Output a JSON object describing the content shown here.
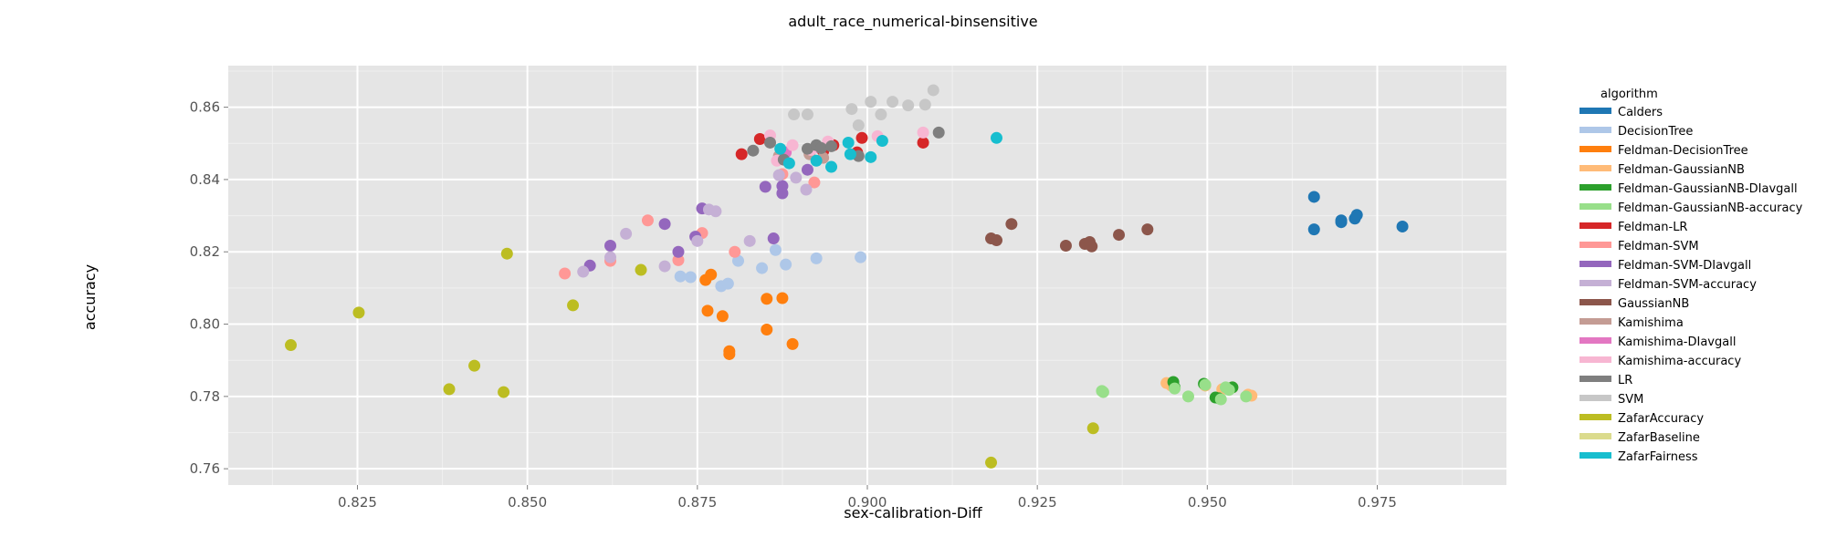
{
  "chart_data": {
    "type": "scatter",
    "title": "adult_race_numerical-binsensitive",
    "xlabel": "sex-calibration-Diff",
    "ylabel": "accuracy",
    "xlim": [
      0.806,
      0.994
    ],
    "ylim": [
      0.7555,
      0.8715
    ],
    "xticks": [
      0.825,
      0.85,
      0.875,
      0.9,
      0.925,
      0.95,
      0.975
    ],
    "xtick_labels": [
      "0.825",
      "0.850",
      "0.875",
      "0.900",
      "0.925",
      "0.950",
      "0.975"
    ],
    "yticks": [
      0.76,
      0.78,
      0.8,
      0.82,
      0.84,
      0.86
    ],
    "ytick_labels": [
      "0.76",
      "0.78",
      "0.80",
      "0.82",
      "0.84",
      "0.86"
    ],
    "grid": true,
    "legend_title": "algorithm",
    "legend_position": "right",
    "series": [
      {
        "name": "Calders",
        "color": "#1f77b4",
        "points": [
          [
            0.9657,
            0.8352
          ],
          [
            0.9657,
            0.8262
          ],
          [
            0.9697,
            0.8282
          ],
          [
            0.9697,
            0.8287
          ],
          [
            0.9717,
            0.8292
          ],
          [
            0.972,
            0.8302
          ],
          [
            0.9787,
            0.827
          ]
        ]
      },
      {
        "name": "DecisionTree",
        "color": "#aec7e8",
        "points": [
          [
            0.8725,
            0.8132
          ],
          [
            0.874,
            0.813
          ],
          [
            0.875,
            0.8242
          ],
          [
            0.8785,
            0.8105
          ],
          [
            0.8795,
            0.8112
          ],
          [
            0.881,
            0.8175
          ],
          [
            0.8845,
            0.8155
          ],
          [
            0.8865,
            0.8205
          ],
          [
            0.888,
            0.8165
          ],
          [
            0.8925,
            0.8182
          ],
          [
            0.899,
            0.8185
          ]
        ]
      },
      {
        "name": "Feldman-DecisionTree",
        "color": "#ff7f0e",
        "points": [
          [
            0.8762,
            0.8122
          ],
          [
            0.8765,
            0.8037
          ],
          [
            0.877,
            0.8137
          ],
          [
            0.8787,
            0.8022
          ],
          [
            0.8797,
            0.7925
          ],
          [
            0.8797,
            0.7917
          ],
          [
            0.8852,
            0.807
          ],
          [
            0.8852,
            0.7985
          ],
          [
            0.8875,
            0.8072
          ],
          [
            0.889,
            0.7945
          ]
        ]
      },
      {
        "name": "Feldman-GaussianNB",
        "color": "#ffbb78",
        "points": [
          [
            0.944,
            0.7837
          ],
          [
            0.9447,
            0.783
          ],
          [
            0.9497,
            0.783
          ],
          [
            0.9522,
            0.782
          ],
          [
            0.9537,
            0.7825
          ],
          [
            0.956,
            0.7805
          ],
          [
            0.9565,
            0.7802
          ]
        ]
      },
      {
        "name": "Feldman-GaussianNB-DIavgall",
        "color": "#2ca02c",
        "points": [
          [
            0.945,
            0.784
          ],
          [
            0.9452,
            0.7825
          ],
          [
            0.9495,
            0.7835
          ],
          [
            0.9512,
            0.7797
          ],
          [
            0.9517,
            0.7795
          ],
          [
            0.9537,
            0.7825
          ]
        ]
      },
      {
        "name": "Feldman-GaussianNB-accuracy",
        "color": "#98df8a",
        "points": [
          [
            0.9345,
            0.7815
          ],
          [
            0.9347,
            0.7812
          ],
          [
            0.9452,
            0.7822
          ],
          [
            0.9472,
            0.78
          ],
          [
            0.9497,
            0.7832
          ],
          [
            0.952,
            0.7792
          ],
          [
            0.9527,
            0.7825
          ],
          [
            0.9532,
            0.7818
          ],
          [
            0.9557,
            0.78
          ]
        ]
      },
      {
        "name": "Feldman-LR",
        "color": "#d62728",
        "points": [
          [
            0.8815,
            0.847
          ],
          [
            0.8842,
            0.8512
          ],
          [
            0.8935,
            0.8478
          ],
          [
            0.895,
            0.8495
          ],
          [
            0.8985,
            0.8475
          ],
          [
            0.8992,
            0.8515
          ],
          [
            0.9082,
            0.8502
          ]
        ]
      },
      {
        "name": "Feldman-SVM",
        "color": "#ff9896",
        "points": [
          [
            0.8555,
            0.814
          ],
          [
            0.8622,
            0.8175
          ],
          [
            0.8677,
            0.8287
          ],
          [
            0.8722,
            0.8177
          ],
          [
            0.8757,
            0.8252
          ],
          [
            0.8805,
            0.82
          ],
          [
            0.8875,
            0.8415
          ],
          [
            0.8922,
            0.8392
          ]
        ]
      },
      {
        "name": "Feldman-SVM-DIavgall",
        "color": "#9467bd",
        "points": [
          [
            0.8592,
            0.8162
          ],
          [
            0.8622,
            0.8217
          ],
          [
            0.8702,
            0.8277
          ],
          [
            0.8722,
            0.82
          ],
          [
            0.8747,
            0.8242
          ],
          [
            0.8757,
            0.832
          ],
          [
            0.885,
            0.838
          ],
          [
            0.8862,
            0.8237
          ],
          [
            0.8875,
            0.8362
          ],
          [
            0.8875,
            0.8382
          ],
          [
            0.8912,
            0.8427
          ]
        ]
      },
      {
        "name": "Feldman-SVM-accuracy",
        "color": "#c5b0d5",
        "points": [
          [
            0.8582,
            0.8145
          ],
          [
            0.8622,
            0.8185
          ],
          [
            0.8645,
            0.825
          ],
          [
            0.8702,
            0.816
          ],
          [
            0.875,
            0.823
          ],
          [
            0.8767,
            0.8317
          ],
          [
            0.8777,
            0.8312
          ],
          [
            0.8827,
            0.823
          ],
          [
            0.887,
            0.8412
          ],
          [
            0.8895,
            0.8405
          ],
          [
            0.891,
            0.8372
          ]
        ]
      },
      {
        "name": "GaussianNB",
        "color": "#8c564b",
        "points": [
          [
            0.9182,
            0.8237
          ],
          [
            0.919,
            0.8232
          ],
          [
            0.9212,
            0.8277
          ],
          [
            0.9292,
            0.8217
          ],
          [
            0.932,
            0.8222
          ],
          [
            0.9327,
            0.8227
          ],
          [
            0.933,
            0.8215
          ],
          [
            0.937,
            0.8247
          ],
          [
            0.9412,
            0.8262
          ]
        ]
      },
      {
        "name": "Kamishima",
        "color": "#c49c94",
        "points": [
          [
            0.887,
            0.8465
          ],
          [
            0.8915,
            0.847
          ],
          [
            0.8935,
            0.846
          ]
        ]
      },
      {
        "name": "Kamishima-DIavgall",
        "color": "#e377c2",
        "points": [
          [
            0.888,
            0.8475
          ],
          [
            0.8925,
            0.849
          ]
        ]
      },
      {
        "name": "Kamishima-accuracy",
        "color": "#f7b6d2",
        "points": [
          [
            0.8857,
            0.8522
          ],
          [
            0.8867,
            0.8452
          ],
          [
            0.889,
            0.8495
          ],
          [
            0.8917,
            0.8482
          ],
          [
            0.8942,
            0.8505
          ],
          [
            0.9015,
            0.852
          ],
          [
            0.9082,
            0.853
          ]
        ]
      },
      {
        "name": "LR",
        "color": "#7f7f7f",
        "points": [
          [
            0.8832,
            0.848
          ],
          [
            0.8857,
            0.8502
          ],
          [
            0.8877,
            0.8455
          ],
          [
            0.8912,
            0.8485
          ],
          [
            0.8925,
            0.8495
          ],
          [
            0.8932,
            0.8487
          ],
          [
            0.8947,
            0.8492
          ],
          [
            0.8987,
            0.8465
          ],
          [
            0.9105,
            0.853
          ]
        ]
      },
      {
        "name": "SVM",
        "color": "#c7c7c7",
        "points": [
          [
            0.8892,
            0.858
          ],
          [
            0.8912,
            0.858
          ],
          [
            0.8977,
            0.8595
          ],
          [
            0.8987,
            0.855
          ],
          [
            0.9005,
            0.8615
          ],
          [
            0.902,
            0.858
          ],
          [
            0.9037,
            0.8615
          ],
          [
            0.906,
            0.8605
          ],
          [
            0.9085,
            0.8607
          ],
          [
            0.9097,
            0.8647
          ]
        ]
      },
      {
        "name": "ZafarAccuracy",
        "color": "#bcbd22",
        "points": [
          [
            0.8152,
            0.7942
          ],
          [
            0.8252,
            0.8032
          ],
          [
            0.8385,
            0.782
          ],
          [
            0.8422,
            0.7885
          ],
          [
            0.8465,
            0.7812
          ],
          [
            0.847,
            0.8195
          ],
          [
            0.8567,
            0.8052
          ],
          [
            0.8667,
            0.815
          ],
          [
            0.9182,
            0.7617
          ],
          [
            0.9332,
            0.7712
          ]
        ]
      },
      {
        "name": "ZafarBaseline",
        "color": "#dbdb8d",
        "points": []
      },
      {
        "name": "ZafarFairness",
        "color": "#17becf",
        "points": [
          [
            0.8872,
            0.8485
          ],
          [
            0.8885,
            0.8445
          ],
          [
            0.8925,
            0.8452
          ],
          [
            0.8947,
            0.8435
          ],
          [
            0.8972,
            0.8502
          ],
          [
            0.8975,
            0.847
          ],
          [
            0.9005,
            0.8462
          ],
          [
            0.9022,
            0.8507
          ],
          [
            0.919,
            0.8515
          ]
        ]
      }
    ]
  }
}
